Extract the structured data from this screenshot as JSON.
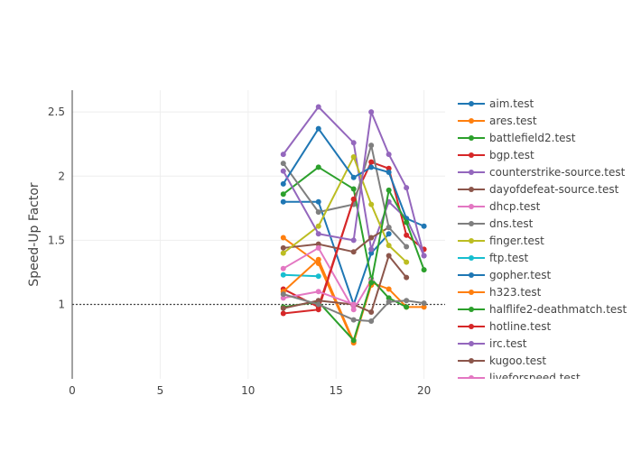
{
  "chart_data": {
    "type": "line",
    "xlabel": "",
    "ylabel": "Speed-Up Factor",
    "xlim": [
      0,
      21.2
    ],
    "ylim": [
      0.42,
      2.67
    ],
    "x_ticks": [
      0,
      5,
      10,
      15,
      20
    ],
    "y_ticks": [
      1,
      1.5,
      2,
      2.5
    ],
    "x_tick_labels": [
      "0",
      "5",
      "10",
      "15",
      "20"
    ],
    "y_tick_labels": [
      "1",
      "1.5",
      "2",
      "2.5"
    ],
    "reference_line": {
      "y": 1,
      "style": "dotted",
      "color": "#444444"
    },
    "grid": true,
    "legend_position": "right",
    "series": [
      {
        "name": "aim.test",
        "color": "#1f77b4",
        "points": [
          [
            12,
            1.8
          ],
          [
            14,
            1.8
          ],
          [
            16,
            1.0
          ],
          [
            17,
            1.4
          ],
          [
            18,
            1.55
          ]
        ]
      },
      {
        "name": "ares.test",
        "color": "#ff7f0e",
        "points": [
          [
            12,
            1.52
          ],
          [
            14,
            1.32
          ],
          [
            16,
            0.7
          ],
          [
            17,
            1.17
          ],
          [
            18,
            1.12
          ],
          [
            19,
            0.98
          ],
          [
            20,
            0.98
          ]
        ]
      },
      {
        "name": "battlefield2.test",
        "color": "#2ca02c",
        "points": [
          [
            12,
            1.86
          ],
          [
            14,
            2.07
          ],
          [
            16,
            1.9
          ],
          [
            17,
            1.2
          ],
          [
            18,
            1.05
          ],
          [
            19,
            0.98
          ]
        ]
      },
      {
        "name": "bgp.test",
        "color": "#d62728",
        "points": [
          [
            12,
            1.12
          ],
          [
            14,
            0.98
          ],
          [
            16,
            1.82
          ],
          [
            17,
            2.11
          ],
          [
            18,
            2.06
          ],
          [
            19,
            1.54
          ],
          [
            20,
            1.43
          ]
        ]
      },
      {
        "name": "counterstrike-source.test",
        "color": "#9467bd",
        "points": [
          [
            12,
            2.17
          ],
          [
            14,
            2.54
          ],
          [
            16,
            2.26
          ],
          [
            17,
            1.43
          ],
          [
            18,
            1.8
          ],
          [
            19,
            1.67
          ],
          [
            20,
            1.38
          ]
        ]
      },
      {
        "name": "dayofdefeat-source.test",
        "color": "#8c564b",
        "points": [
          [
            12,
            1.44
          ],
          [
            14,
            1.47
          ],
          [
            16,
            1.41
          ],
          [
            17,
            1.52
          ],
          [
            18,
            1.6
          ]
        ]
      },
      {
        "name": "dhcp.test",
        "color": "#e377c2",
        "points": [
          [
            12,
            1.28
          ],
          [
            14,
            1.44
          ],
          [
            16,
            0.96
          ],
          [
            17,
            1.19
          ]
        ]
      },
      {
        "name": "dns.test",
        "color": "#7f7f7f",
        "points": [
          [
            12,
            2.1
          ],
          [
            14,
            1.72
          ],
          [
            16,
            1.78
          ],
          [
            17,
            2.24
          ],
          [
            18,
            1.6
          ],
          [
            19,
            1.45
          ]
        ]
      },
      {
        "name": "finger.test",
        "color": "#bcbd22",
        "points": [
          [
            12,
            1.4
          ],
          [
            14,
            1.61
          ],
          [
            16,
            2.15
          ],
          [
            17,
            1.78
          ],
          [
            18,
            1.46
          ],
          [
            19,
            1.33
          ]
        ]
      },
      {
        "name": "ftp.test",
        "color": "#17becf",
        "points": [
          [
            12,
            1.23
          ],
          [
            14,
            1.22
          ]
        ]
      },
      {
        "name": "gopher.test",
        "color": "#1f77b4",
        "points": [
          [
            12,
            1.94
          ],
          [
            14,
            2.37
          ],
          [
            16,
            1.99
          ],
          [
            17,
            2.07
          ],
          [
            18,
            2.03
          ],
          [
            19,
            1.67
          ],
          [
            20,
            1.61
          ]
        ]
      },
      {
        "name": "h323.test",
        "color": "#ff7f0e",
        "points": [
          [
            12,
            1.1
          ],
          [
            14,
            1.35
          ],
          [
            16,
            0.71
          ],
          [
            17,
            1.15
          ]
        ]
      },
      {
        "name": "halflife2-deathmatch.test",
        "color": "#2ca02c",
        "points": [
          [
            12,
            0.98
          ],
          [
            14,
            1.02
          ],
          [
            16,
            0.72
          ],
          [
            17,
            1.17
          ],
          [
            18,
            1.89
          ],
          [
            19,
            1.64
          ],
          [
            20,
            1.27
          ]
        ]
      },
      {
        "name": "hotline.test",
        "color": "#d62728",
        "points": [
          [
            12,
            0.93
          ],
          [
            14,
            0.96
          ],
          [
            16,
            1.82
          ]
        ]
      },
      {
        "name": "irc.test",
        "color": "#9467bd",
        "points": [
          [
            12,
            2.04
          ],
          [
            14,
            1.55
          ],
          [
            16,
            1.5
          ],
          [
            17,
            2.5
          ],
          [
            18,
            2.17
          ],
          [
            19,
            1.91
          ],
          [
            20,
            1.38
          ]
        ]
      },
      {
        "name": "kugoo.test",
        "color": "#8c564b",
        "points": [
          [
            12,
            0.97
          ],
          [
            14,
            1.03
          ],
          [
            16,
            1.0
          ],
          [
            17,
            0.94
          ],
          [
            18,
            1.38
          ],
          [
            19,
            1.21
          ]
        ]
      },
      {
        "name": "liveforspeed.test",
        "color": "#e377c2",
        "points": [
          [
            12,
            1.05
          ],
          [
            14,
            1.1
          ],
          [
            16,
            1.0
          ]
        ]
      },
      {
        "name": "",
        "color": "#7f7f7f",
        "points": [
          [
            12,
            1.08
          ],
          [
            14,
            1.0
          ],
          [
            16,
            0.88
          ],
          [
            17,
            0.87
          ],
          [
            18,
            1.02
          ],
          [
            19,
            1.03
          ],
          [
            20,
            1.01
          ]
        ]
      }
    ]
  }
}
